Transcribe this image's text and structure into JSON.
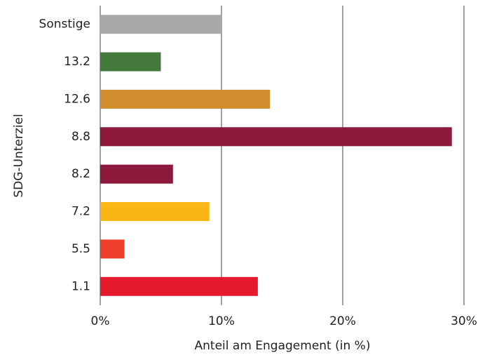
{
  "chart_data": {
    "type": "bar",
    "orientation": "horizontal",
    "xlabel": "Anteil am Engagement (in %)",
    "ylabel": "SDG-Unterziel",
    "categories": [
      "Sonstige",
      "13.2",
      "12.6",
      "8.8",
      "8.2",
      "7.2",
      "5.5",
      "1.1"
    ],
    "values": [
      10,
      5,
      14,
      29,
      6,
      9,
      2,
      13
    ],
    "colors": [
      "#a8a9ab",
      "#437a3b",
      "#cf8d2e",
      "#8b1a3c",
      "#8b1a3c",
      "#fbb616",
      "#ef402c",
      "#e7192f"
    ],
    "xlim": [
      0,
      30
    ],
    "xticks": [
      {
        "value": 0,
        "label": "0%"
      },
      {
        "value": 10,
        "label": "10%"
      },
      {
        "value": 20,
        "label": "20%"
      },
      {
        "value": 30,
        "label": "30%"
      }
    ],
    "grid": true
  }
}
